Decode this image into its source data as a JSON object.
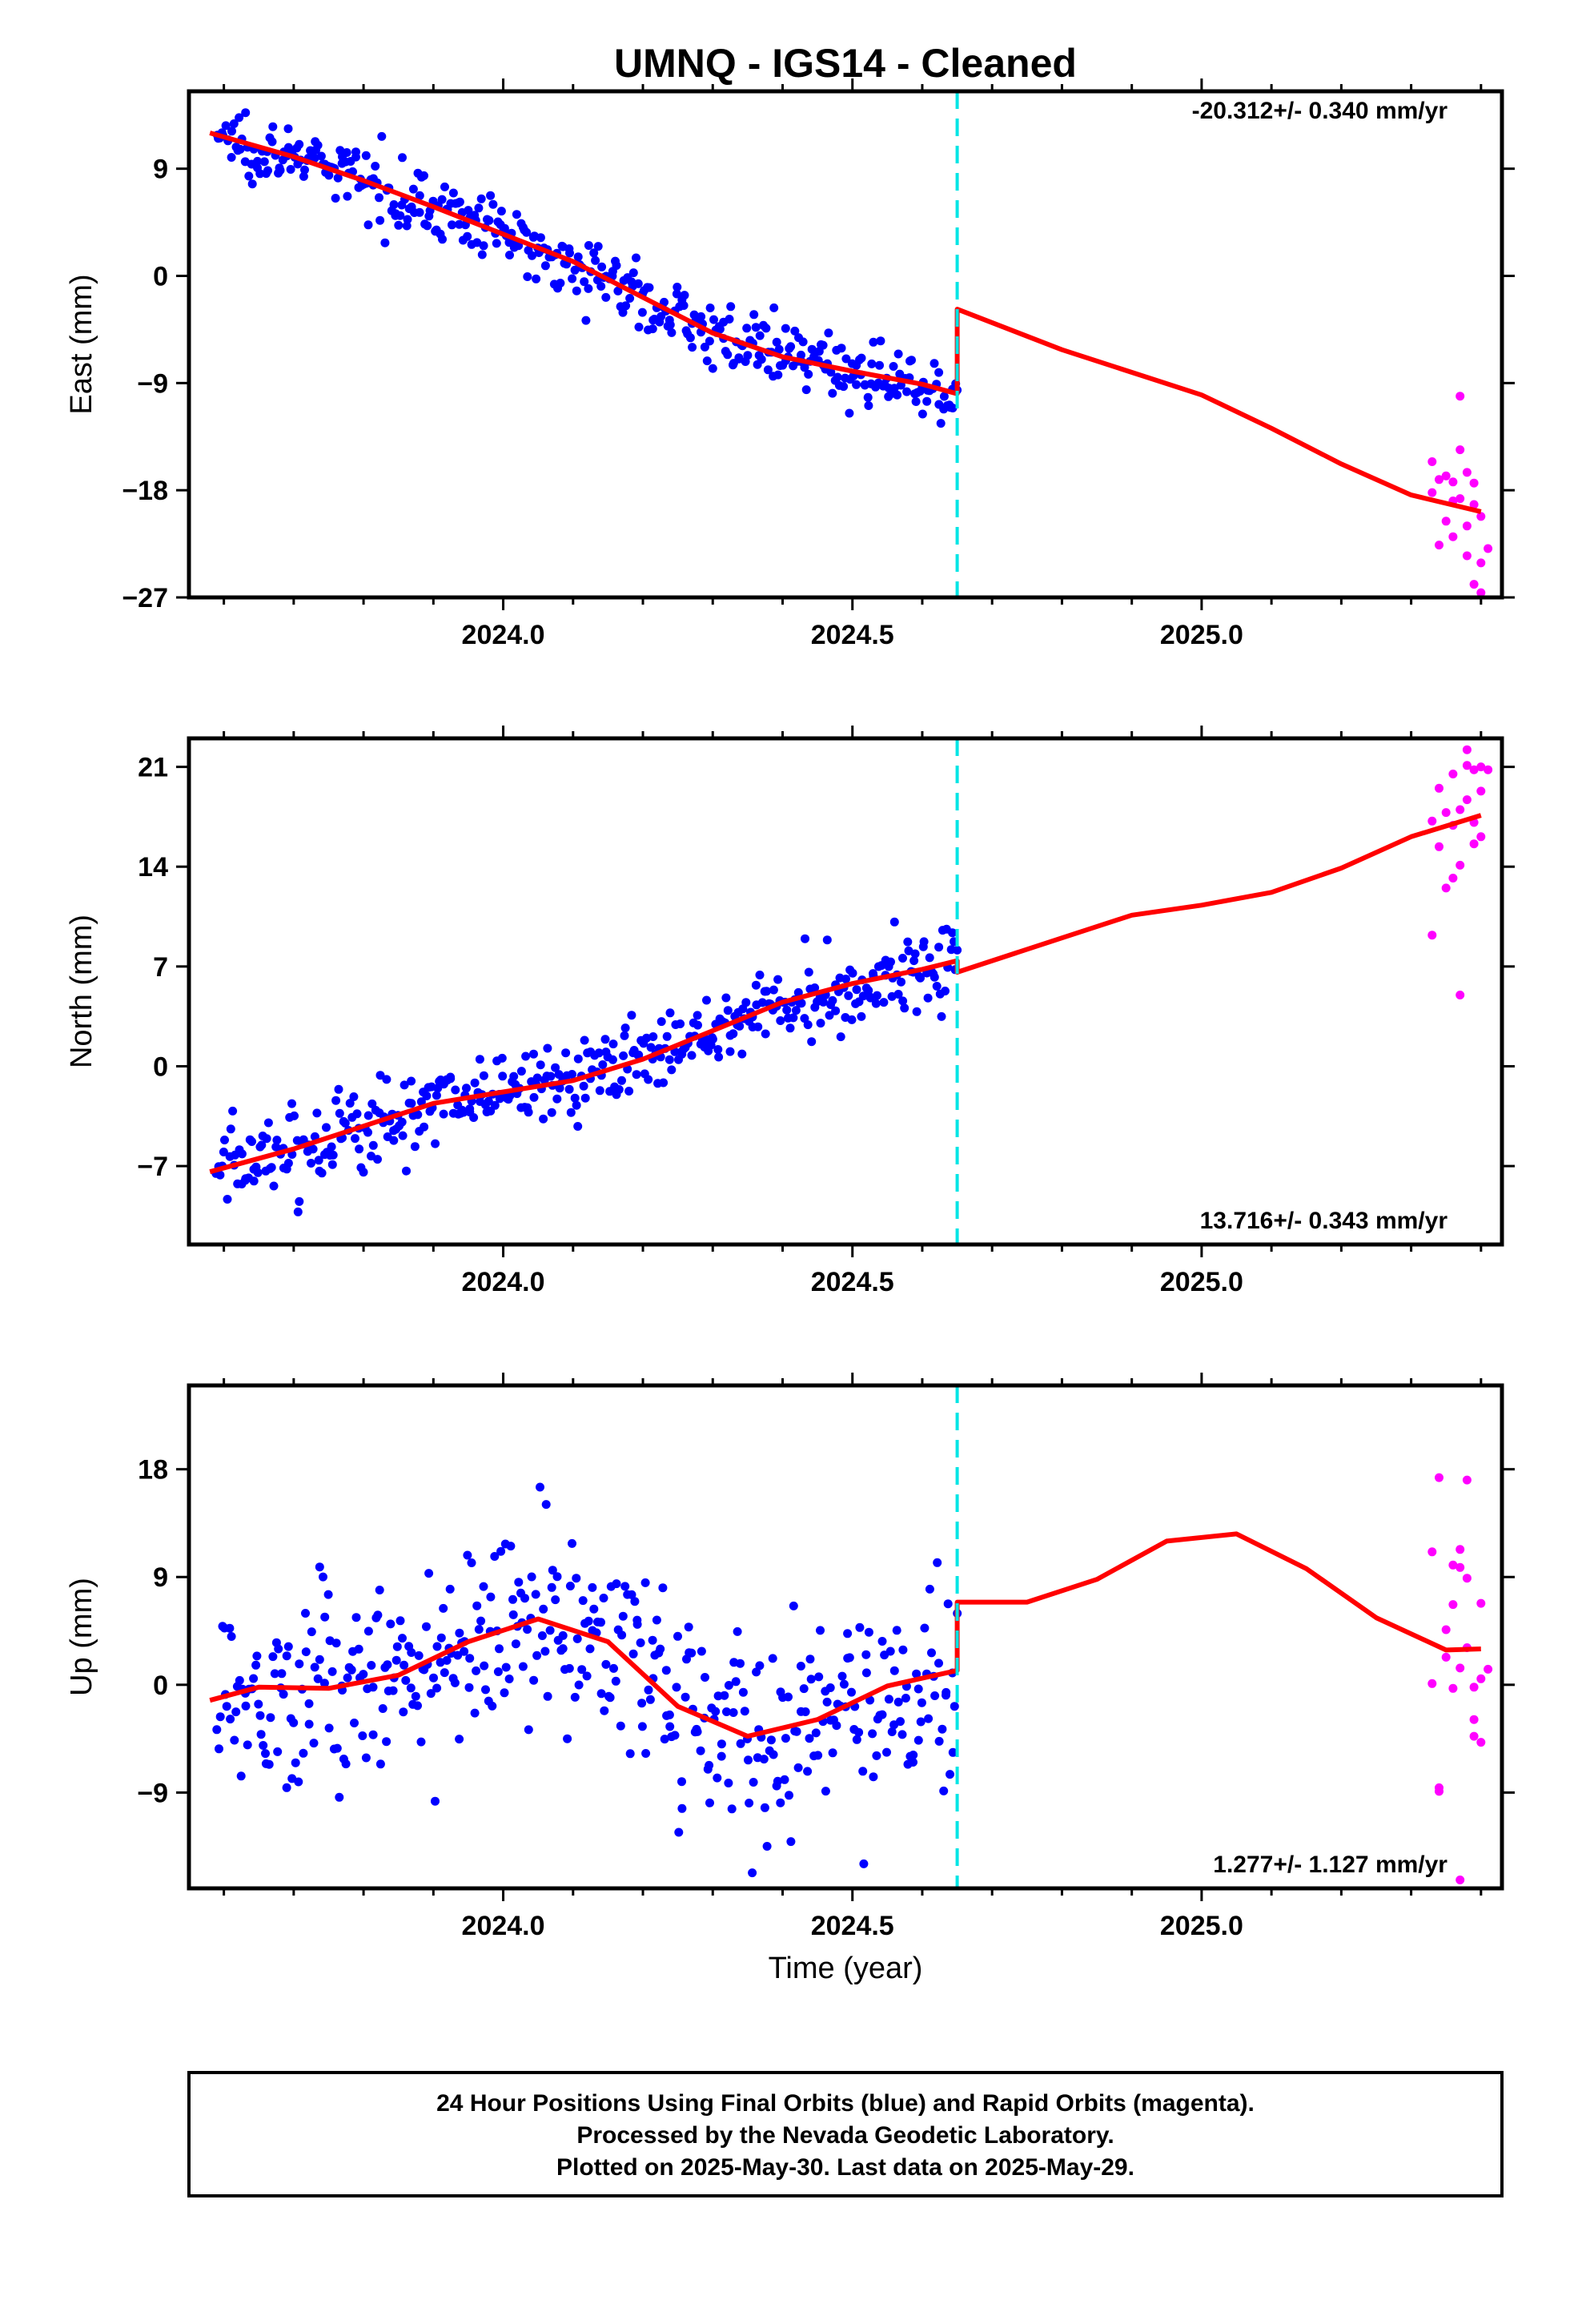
{
  "title": "UMNQ  - IGS14 - Cleaned",
  "xlabel": "Time (year)",
  "footer": {
    "line1": "24 Hour Positions Using Final Orbits (blue) and Rapid Orbits (magenta).",
    "line2": "Processed by the Nevada Geodetic Laboratory.",
    "line3": "Plotted on 2025-May-30. Last data on 2025-May-29."
  },
  "colors": {
    "final": "#0000ff",
    "rapid": "#ff00ff",
    "model": "#ff0000",
    "step": "#00e5e5"
  },
  "chart_data": [
    {
      "type": "scatter",
      "name": "east",
      "ylabel": "East (mm)",
      "rate_text": "-20.312+/- 0.340 mm/yr",
      "xlim": [
        2023.55,
        2025.43
      ],
      "ylim": [
        -27,
        15.5
      ],
      "yticks": [
        -27,
        -18,
        -9,
        0,
        9
      ],
      "xticks": [
        2024.0,
        2024.5,
        2025.0
      ],
      "step_epoch": 2024.65,
      "final_range": [
        2023.59,
        2024.65
      ],
      "rapid_range": [
        2025.33,
        2025.4
      ],
      "model_segments": [
        [
          [
            2023.58,
            12.0
          ],
          [
            2023.7,
            10.0
          ],
          [
            2023.8,
            8.0
          ],
          [
            2023.9,
            5.8
          ],
          [
            2024.0,
            3.5
          ],
          [
            2024.1,
            1.2
          ],
          [
            2024.2,
            -1.8
          ],
          [
            2024.3,
            -4.8
          ],
          [
            2024.4,
            -6.8
          ],
          [
            2024.5,
            -8.0
          ],
          [
            2024.6,
            -9.1
          ],
          [
            2024.65,
            -9.9
          ]
        ],
        [
          [
            2024.65,
            -2.8
          ],
          [
            2024.8,
            -6.2
          ],
          [
            2025.0,
            -10.0
          ],
          [
            2025.1,
            -12.8
          ],
          [
            2025.2,
            -15.8
          ],
          [
            2025.3,
            -18.4
          ],
          [
            2025.4,
            -19.8
          ]
        ]
      ],
      "rapid_points": [
        [
          2025.33,
          -15.6
        ],
        [
          2025.33,
          -18.2
        ],
        [
          2025.34,
          -22.6
        ],
        [
          2025.34,
          -17.1
        ],
        [
          2025.35,
          -16.8
        ],
        [
          2025.35,
          -20.6
        ],
        [
          2025.36,
          -17.3
        ],
        [
          2025.36,
          -21.9
        ],
        [
          2025.36,
          -18.9
        ],
        [
          2025.37,
          -10.1
        ],
        [
          2025.37,
          -14.6
        ],
        [
          2025.37,
          -18.7
        ],
        [
          2025.38,
          -16.5
        ],
        [
          2025.38,
          -21.0
        ],
        [
          2025.38,
          -23.5
        ],
        [
          2025.39,
          -17.4
        ],
        [
          2025.39,
          -19.2
        ],
        [
          2025.39,
          -25.9
        ],
        [
          2025.4,
          -26.6
        ],
        [
          2025.4,
          -24.1
        ],
        [
          2025.4,
          -20.2
        ],
        [
          2025.41,
          -22.9
        ]
      ]
    },
    {
      "type": "scatter",
      "name": "north",
      "ylabel": "North (mm)",
      "rate_text": "13.716+/- 0.343 mm/yr",
      "xlim": [
        2023.55,
        2025.43
      ],
      "ylim": [
        -12.5,
        23
      ],
      "yticks": [
        -7,
        0,
        7,
        14,
        21
      ],
      "xticks": [
        2024.0,
        2024.5,
        2025.0
      ],
      "step_epoch": 2024.65,
      "final_range": [
        2023.59,
        2024.65
      ],
      "rapid_range": [
        2025.33,
        2025.4
      ],
      "model_segments": [
        [
          [
            2023.58,
            -7.4
          ],
          [
            2023.7,
            -5.8
          ],
          [
            2023.8,
            -4.2
          ],
          [
            2023.9,
            -2.6
          ],
          [
            2024.0,
            -1.8
          ],
          [
            2024.1,
            -1.0
          ],
          [
            2024.2,
            0.5
          ],
          [
            2024.3,
            2.5
          ],
          [
            2024.4,
            4.5
          ],
          [
            2024.5,
            5.8
          ],
          [
            2024.6,
            6.8
          ],
          [
            2024.65,
            7.4
          ]
        ],
        [
          [
            2024.65,
            6.6
          ],
          [
            2024.8,
            9.0
          ],
          [
            2024.9,
            10.6
          ],
          [
            2025.0,
            11.3
          ],
          [
            2025.1,
            12.2
          ],
          [
            2025.2,
            13.9
          ],
          [
            2025.3,
            16.1
          ],
          [
            2025.4,
            17.6
          ]
        ]
      ],
      "rapid_points": [
        [
          2025.33,
          9.2
        ],
        [
          2025.33,
          17.2
        ],
        [
          2025.34,
          15.4
        ],
        [
          2025.34,
          19.5
        ],
        [
          2025.35,
          17.8
        ],
        [
          2025.35,
          12.5
        ],
        [
          2025.36,
          13.2
        ],
        [
          2025.36,
          16.9
        ],
        [
          2025.36,
          20.5
        ],
        [
          2025.37,
          14.1
        ],
        [
          2025.37,
          18.0
        ],
        [
          2025.37,
          5.0
        ],
        [
          2025.38,
          21.1
        ],
        [
          2025.38,
          22.2
        ],
        [
          2025.38,
          18.7
        ],
        [
          2025.39,
          15.6
        ],
        [
          2025.39,
          20.8
        ],
        [
          2025.39,
          17.1
        ],
        [
          2025.4,
          19.3
        ],
        [
          2025.4,
          21.0
        ],
        [
          2025.4,
          16.1
        ],
        [
          2025.41,
          20.8
        ]
      ]
    },
    {
      "type": "scatter",
      "name": "up",
      "ylabel": "Up (mm)",
      "rate_text": "1.277+/- 1.127 mm/yr",
      "xlim": [
        2023.55,
        2025.43
      ],
      "ylim": [
        -17,
        25
      ],
      "yticks": [
        -9,
        0,
        9,
        18
      ],
      "xticks": [
        2024.0,
        2024.5,
        2025.0
      ],
      "step_epoch": 2024.65,
      "final_range": [
        2023.59,
        2024.65
      ],
      "rapid_range": [
        2025.33,
        2025.4
      ],
      "model_segments": [
        [
          [
            2023.58,
            -1.3
          ],
          [
            2023.65,
            -0.2
          ],
          [
            2023.75,
            -0.3
          ],
          [
            2023.85,
            0.8
          ],
          [
            2023.95,
            3.6
          ],
          [
            2024.05,
            5.5
          ],
          [
            2024.15,
            3.6
          ],
          [
            2024.25,
            -1.8
          ],
          [
            2024.35,
            -4.3
          ],
          [
            2024.45,
            -2.9
          ],
          [
            2024.55,
            -0.1
          ],
          [
            2024.65,
            1.2
          ]
        ],
        [
          [
            2024.65,
            6.9
          ],
          [
            2024.75,
            6.9
          ],
          [
            2024.85,
            8.8
          ],
          [
            2024.95,
            12.0
          ],
          [
            2025.05,
            12.6
          ],
          [
            2025.15,
            9.7
          ],
          [
            2025.25,
            5.6
          ],
          [
            2025.35,
            2.9
          ],
          [
            2025.4,
            3.0
          ]
        ]
      ],
      "rapid_points": [
        [
          2025.33,
          0.1
        ],
        [
          2025.33,
          11.1
        ],
        [
          2025.34,
          -8.6
        ],
        [
          2025.34,
          -8.9
        ],
        [
          2025.34,
          17.3
        ],
        [
          2025.35,
          4.6
        ],
        [
          2025.35,
          2.3
        ],
        [
          2025.36,
          10.0
        ],
        [
          2025.36,
          6.7
        ],
        [
          2025.36,
          -0.3
        ],
        [
          2025.37,
          9.8
        ],
        [
          2025.37,
          11.3
        ],
        [
          2025.37,
          1.4
        ],
        [
          2025.38,
          17.1
        ],
        [
          2025.38,
          8.9
        ],
        [
          2025.38,
          3.1
        ],
        [
          2025.39,
          -2.9
        ],
        [
          2025.39,
          -4.3
        ],
        [
          2025.39,
          -0.2
        ],
        [
          2025.4,
          6.8
        ],
        [
          2025.4,
          -4.8
        ],
        [
          2025.4,
          0.5
        ],
        [
          2025.41,
          1.3
        ],
        [
          2025.37,
          -16.3
        ]
      ]
    }
  ]
}
